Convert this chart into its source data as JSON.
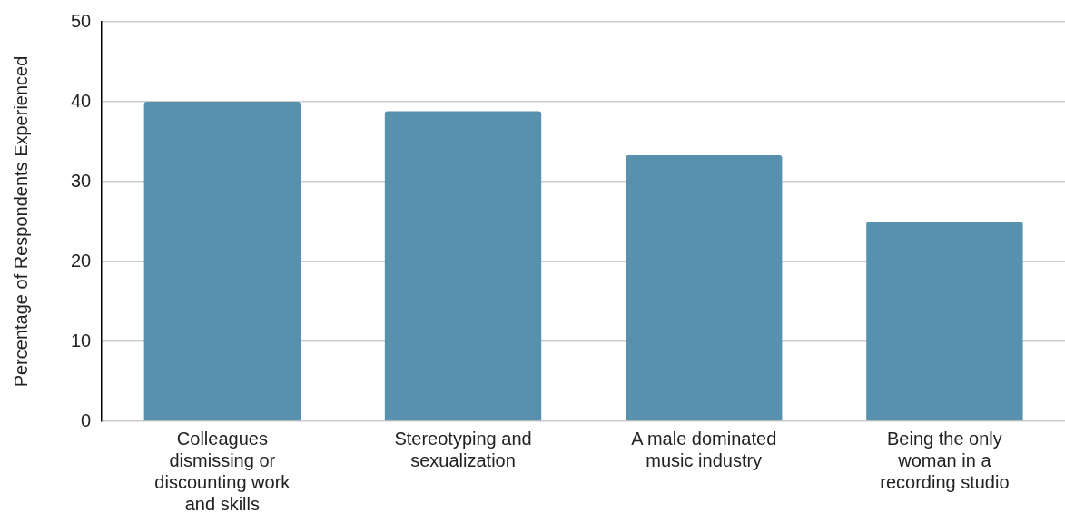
{
  "chart_data": {
    "type": "bar",
    "categories": [
      "Colleagues dismissing or discounting work and skills",
      "Stereotyping and sexualization",
      "A male dominated music industry",
      "Being the only woman in a recording studio"
    ],
    "values": [
      40,
      38.8,
      33.3,
      25
    ],
    "color": "#5891ae",
    "ylabel": "Percentage of Respondents Experienced",
    "ylim": [
      0,
      50
    ],
    "yticks": [
      0,
      10,
      20,
      30,
      40,
      50
    ],
    "grid": "y",
    "legend": false
  }
}
